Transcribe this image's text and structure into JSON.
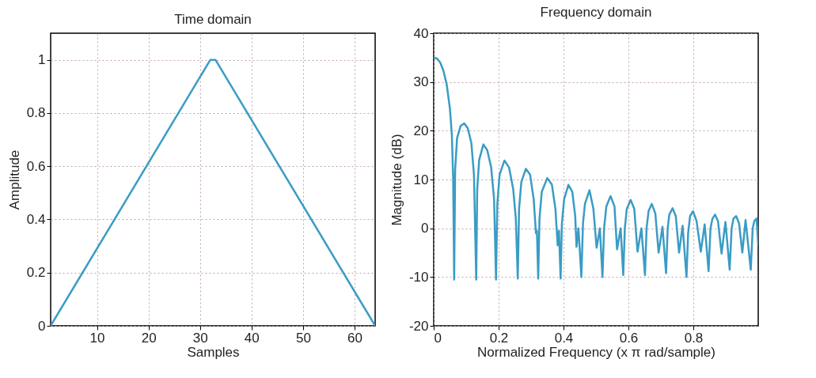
{
  "chart_data": [
    {
      "type": "line",
      "title": "Time domain",
      "xlabel": "Samples",
      "ylabel": "Amplitude",
      "xlim": [
        1,
        64
      ],
      "ylim": [
        0,
        1.1
      ],
      "xticks": [
        10,
        20,
        30,
        40,
        50,
        60
      ],
      "yticks": [
        0,
        0.2,
        0.4,
        0.6,
        0.8,
        1
      ],
      "grid": true,
      "series": [
        {
          "color": "#3a9cc4",
          "x": [
            1,
            32,
            33,
            64
          ],
          "values": [
            0,
            1,
            1,
            0
          ]
        }
      ]
    },
    {
      "type": "line",
      "title": "Frequency domain",
      "xlabel": "Normalized Frequency (x π rad/sample)",
      "ylabel": "Magnitude (dB)",
      "xlim": [
        0,
        1
      ],
      "ylim": [
        -20,
        40
      ],
      "xticks": [
        0,
        0.2,
        0.4,
        0.6,
        0.8
      ],
      "yticks": [
        -20,
        -10,
        0,
        10,
        20,
        30,
        40
      ],
      "grid": true,
      "series": [
        {
          "color": "#3a9cc4",
          "x": [
            0,
            0.01,
            0.02,
            0.03,
            0.04,
            0.05,
            0.056,
            0.06,
            0.063,
            0.066,
            0.072,
            0.083,
            0.094,
            0.105,
            0.116,
            0.124,
            0.131,
            0.134,
            0.14,
            0.153,
            0.165,
            0.177,
            0.186,
            0.192,
            0.196,
            0.203,
            0.218,
            0.232,
            0.245,
            0.253,
            0.259,
            0.263,
            0.27,
            0.284,
            0.297,
            0.308,
            0.315,
            0.318,
            0.322,
            0.326,
            0.333,
            0.35,
            0.364,
            0.375,
            0.382,
            0.386,
            0.391,
            0.395,
            0.402,
            0.415,
            0.427,
            0.436,
            0.44,
            0.446,
            0.455,
            0.46,
            0.466,
            0.48,
            0.492,
            0.502,
            0.512,
            0.52,
            0.525,
            0.532,
            0.545,
            0.557,
            0.565,
            0.576,
            0.584,
            0.589,
            0.595,
            0.607,
            0.618,
            0.628,
            0.64,
            0.651,
            0.656,
            0.662,
            0.672,
            0.683,
            0.693,
            0.705,
            0.716,
            0.721,
            0.726,
            0.736,
            0.746,
            0.756,
            0.767,
            0.779,
            0.784,
            0.79,
            0.799,
            0.81,
            0.823,
            0.835,
            0.847,
            0.853,
            0.859,
            0.867,
            0.876,
            0.887,
            0.899,
            0.912,
            0.918,
            0.924,
            0.932,
            0.941,
            0.951,
            0.961,
            0.977,
            0.983,
            0.988,
            0.995,
            1.0
          ],
          "values": [
            35,
            34.8,
            34,
            32.3,
            29.5,
            24.5,
            19,
            10,
            -10.5,
            12,
            18.5,
            21,
            21.5,
            20.5,
            17.5,
            11,
            -10.5,
            8,
            14,
            17.2,
            16,
            12.5,
            6,
            -10.5,
            5,
            11,
            13.9,
            12.5,
            8,
            2,
            -10.3,
            4,
            9.5,
            12.2,
            11,
            6,
            -1,
            -0.5,
            -10.3,
            2,
            7.5,
            10.3,
            9,
            4,
            -3.5,
            -0.5,
            -10.3,
            1,
            6,
            8.9,
            7.5,
            2.5,
            -3.8,
            0,
            -10,
            1,
            5,
            7.8,
            4,
            -4,
            0,
            -10,
            0,
            4.5,
            6.6,
            4.5,
            -4.3,
            0,
            -9.6,
            0,
            4,
            5.8,
            4,
            -4.8,
            0,
            -9.6,
            0,
            3.5,
            5,
            3,
            -5,
            0.3,
            -9.2,
            0,
            2.8,
            4.1,
            2.5,
            -5,
            0.5,
            -10,
            -1,
            2.5,
            3.5,
            1.5,
            -4.8,
            0.8,
            -8.8,
            0,
            2,
            2.8,
            1.5,
            -5.2,
            1.3,
            -8.5,
            0,
            2,
            2.5,
            1,
            -5,
            1.7,
            -8.5,
            0,
            1.5,
            2,
            -3.5
          ]
        }
      ]
    }
  ]
}
